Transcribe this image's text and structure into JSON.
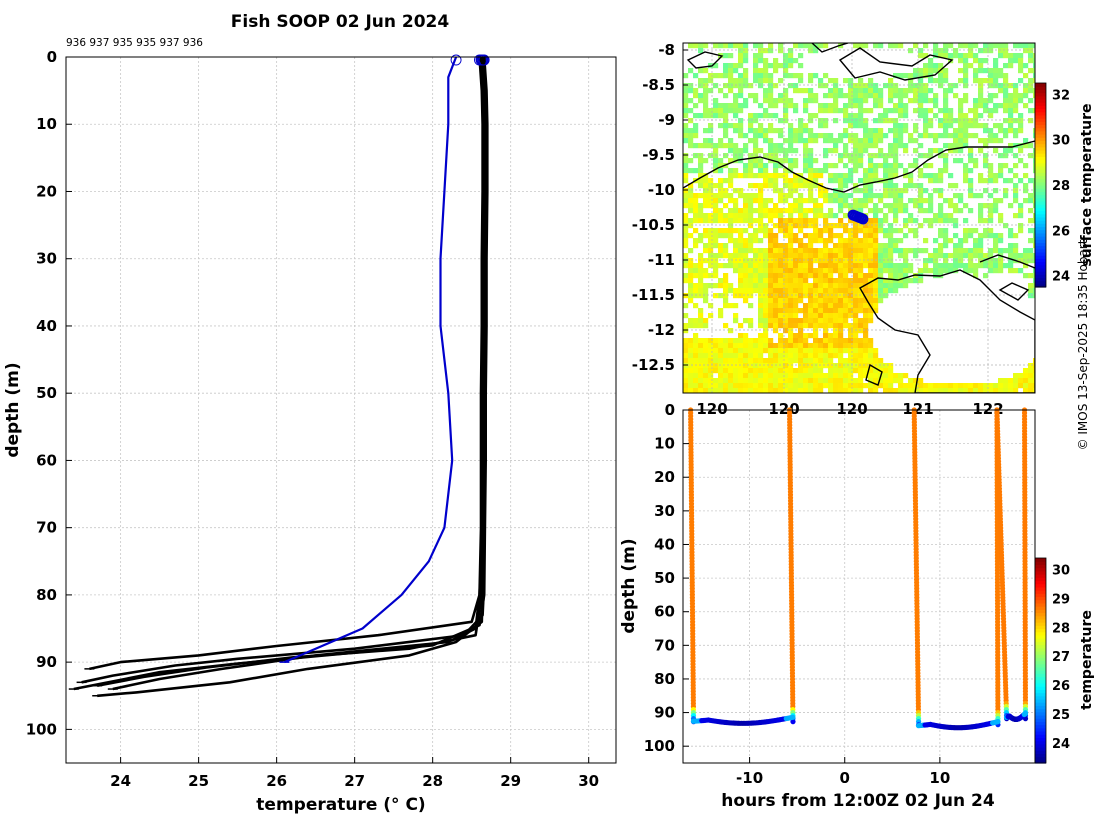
{
  "title": "Fish SOOP 02 Jun 2024",
  "credit": "© IMOS 13-Sep-2025 18:35 Hobart",
  "profile_ids_label": "936 937 935 935 937 936",
  "chart_data": [
    {
      "id": "profile",
      "type": "line",
      "title": "Fish SOOP 02 Jun 2024",
      "xlabel": "temperature (° C)",
      "ylabel": "depth (m)",
      "xlim": [
        23.3,
        30.35
      ],
      "ylim": [
        105,
        0
      ],
      "xticks": [
        "24",
        "25",
        "26",
        "27",
        "28",
        "29",
        "30"
      ],
      "yticks": [
        "0",
        "10",
        "20",
        "30",
        "40",
        "50",
        "60",
        "70",
        "80",
        "90",
        "100"
      ],
      "grid": true,
      "series": [
        {
          "name": "profile-1",
          "color": "#000000",
          "x": [
            28.62,
            28.65,
            28.66,
            28.66,
            28.65,
            28.65,
            28.64,
            28.64,
            28.63,
            28.62,
            28.6,
            28.5,
            27.3,
            26.0,
            25.0,
            24.0,
            23.6
          ],
          "y": [
            0,
            5,
            10,
            20,
            30,
            40,
            50,
            60,
            70,
            75,
            80,
            84,
            86,
            87.6,
            89,
            90,
            91
          ]
        },
        {
          "name": "profile-2",
          "color": "#000000",
          "x": [
            28.64,
            28.68,
            28.69,
            28.69,
            28.68,
            28.68,
            28.67,
            28.67,
            28.66,
            28.66,
            28.64,
            28.4,
            27.0,
            25.5,
            24.7,
            23.9,
            23.5
          ],
          "y": [
            0,
            5,
            10,
            20,
            30,
            40,
            50,
            60,
            70,
            78,
            83,
            86,
            88,
            89.5,
            90.5,
            92,
            93
          ]
        },
        {
          "name": "profile-3",
          "color": "#000000",
          "x": [
            28.6,
            28.63,
            28.64,
            28.64,
            28.63,
            28.63,
            28.62,
            28.62,
            28.62,
            28.6,
            28.55,
            28.2,
            26.5,
            25.3,
            24.5,
            23.9
          ],
          "y": [
            0,
            5,
            10,
            20,
            30,
            40,
            50,
            60,
            70,
            80,
            85,
            87,
            89,
            91,
            92.5,
            94
          ]
        },
        {
          "name": "profile-4",
          "color": "#000000",
          "x": [
            28.66,
            28.69,
            28.7,
            28.7,
            28.69,
            28.69,
            28.68,
            28.68,
            28.67,
            28.66,
            28.6,
            28.0,
            26.8,
            25.5,
            24.5,
            23.4
          ],
          "y": [
            0,
            5,
            10,
            20,
            30,
            40,
            50,
            60,
            70,
            80,
            84.5,
            87.5,
            88.8,
            90.2,
            91.5,
            94
          ]
        },
        {
          "name": "profile-5",
          "color": "#000000",
          "x": [
            28.63,
            28.66,
            28.67,
            28.67,
            28.66,
            28.66,
            28.65,
            28.65,
            28.64,
            28.63,
            28.55,
            27.7,
            26.2,
            25.1,
            24.3,
            23.7
          ],
          "y": [
            0,
            5,
            10,
            20,
            30,
            40,
            50,
            60,
            70,
            80,
            86,
            88,
            89.3,
            90.8,
            92.2,
            93.5
          ]
        },
        {
          "name": "profile-6",
          "color": "#000000",
          "x": [
            28.65,
            28.68,
            28.69,
            28.69,
            28.68,
            28.68,
            28.67,
            28.66,
            28.65,
            28.64,
            28.63,
            28.3,
            27.7,
            26.4,
            25.4,
            24.2,
            23.7
          ],
          "y": [
            0,
            5,
            10,
            20,
            30,
            40,
            50,
            60,
            70,
            80,
            84,
            87,
            89,
            91,
            93,
            94.5,
            95
          ]
        },
        {
          "name": "profile-blue",
          "color": "#0000cc",
          "x": [
            28.3,
            28.2,
            28.2,
            28.15,
            28.1,
            28.1,
            28.15,
            28.2,
            28.25,
            28.15,
            27.95,
            27.6,
            27.1,
            26.5,
            26.1
          ],
          "y": [
            0,
            3,
            10,
            20,
            30,
            40,
            45,
            50,
            60,
            70,
            75,
            80,
            85,
            88,
            90
          ]
        }
      ]
    },
    {
      "id": "map",
      "type": "heatmap",
      "colorbar_label": "surface temperature",
      "colorbar_ticks": [
        "24",
        "26",
        "28",
        "30",
        "32"
      ],
      "colorbar_range": [
        23.5,
        32.5
      ],
      "ylim": [
        -12.9,
        -7.9
      ],
      "yticks": [
        "-8",
        "-8.5",
        "-9",
        "-9.5",
        "-10",
        "-10.5",
        "-11",
        "-11.5",
        "-12",
        "-12.5"
      ],
      "xticks": [
        "120",
        "120",
        "120",
        "121",
        "122"
      ],
      "ship_track": {
        "lon": [
          120.12,
          120.2
        ],
        "lat": [
          -10.36,
          -10.42
        ],
        "color": "#0000cc"
      }
    },
    {
      "id": "section",
      "type": "scatter",
      "xlabel": "hours from 12:00Z 02 Jun 24",
      "ylabel": "depth (m)",
      "xlim": [
        -17,
        20
      ],
      "ylim": [
        105,
        0
      ],
      "xticks": [
        "-10",
        "0",
        "10"
      ],
      "yticks": [
        "0",
        "10",
        "20",
        "30",
        "40",
        "50",
        "60",
        "70",
        "80",
        "90",
        "100"
      ],
      "colorbar_label": "temperature",
      "colorbar_ticks": [
        "24",
        "25",
        "26",
        "27",
        "28",
        "29",
        "30"
      ],
      "colorbar_range": [
        23.3,
        30.4
      ],
      "casts": [
        {
          "start": -16.2,
          "end": -5.8,
          "start_drift": 0.3,
          "end_drift": 0.35,
          "bottom": 93.2,
          "surface_temp": 28.65
        },
        {
          "start": 7.3,
          "end": 16.0,
          "start_drift": 0.45,
          "end_drift": 0.1,
          "bottom": 94.5,
          "surface_temp": 28.64
        },
        {
          "start": 16.0,
          "end": 18.9,
          "start_drift": 1.0,
          "end_drift": 0.1,
          "bottom": 92.0,
          "surface_temp": 28.66
        }
      ]
    }
  ]
}
